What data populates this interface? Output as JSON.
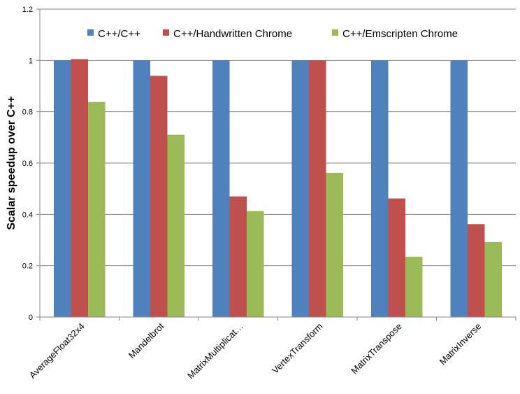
{
  "chart_data": {
    "type": "bar",
    "title": "",
    "xlabel": "",
    "ylabel": "Scalar speedup over C++",
    "ylim": [
      0,
      1.2
    ],
    "yticks": [
      0,
      0.2,
      0.4,
      0.6,
      0.8,
      1,
      1.2
    ],
    "ytick_labels": [
      "0",
      "0.2",
      "0.4",
      "0.6",
      "0.8",
      "1",
      "1.2"
    ],
    "grid": true,
    "legend_position": "top",
    "categories": [
      "AverageFloat32x4",
      "Mandelbrot",
      "MatrixMultiplicat…",
      "VertexTransform",
      "MatrixTranspose",
      "MatrixInverse"
    ],
    "series": [
      {
        "name": "C++/C++",
        "color": "#4f81bd",
        "values": [
          1,
          1,
          1,
          1,
          1,
          1
        ]
      },
      {
        "name": "C++/Handwritten Chrome",
        "color": "#c0504d",
        "values": [
          1.005,
          0.94,
          0.47,
          1.0,
          0.462,
          0.362
        ]
      },
      {
        "name": "C++/Emscripten Chrome",
        "color": "#9bbb59",
        "values": [
          0.838,
          0.71,
          0.413,
          0.562,
          0.235,
          0.292
        ]
      }
    ]
  }
}
